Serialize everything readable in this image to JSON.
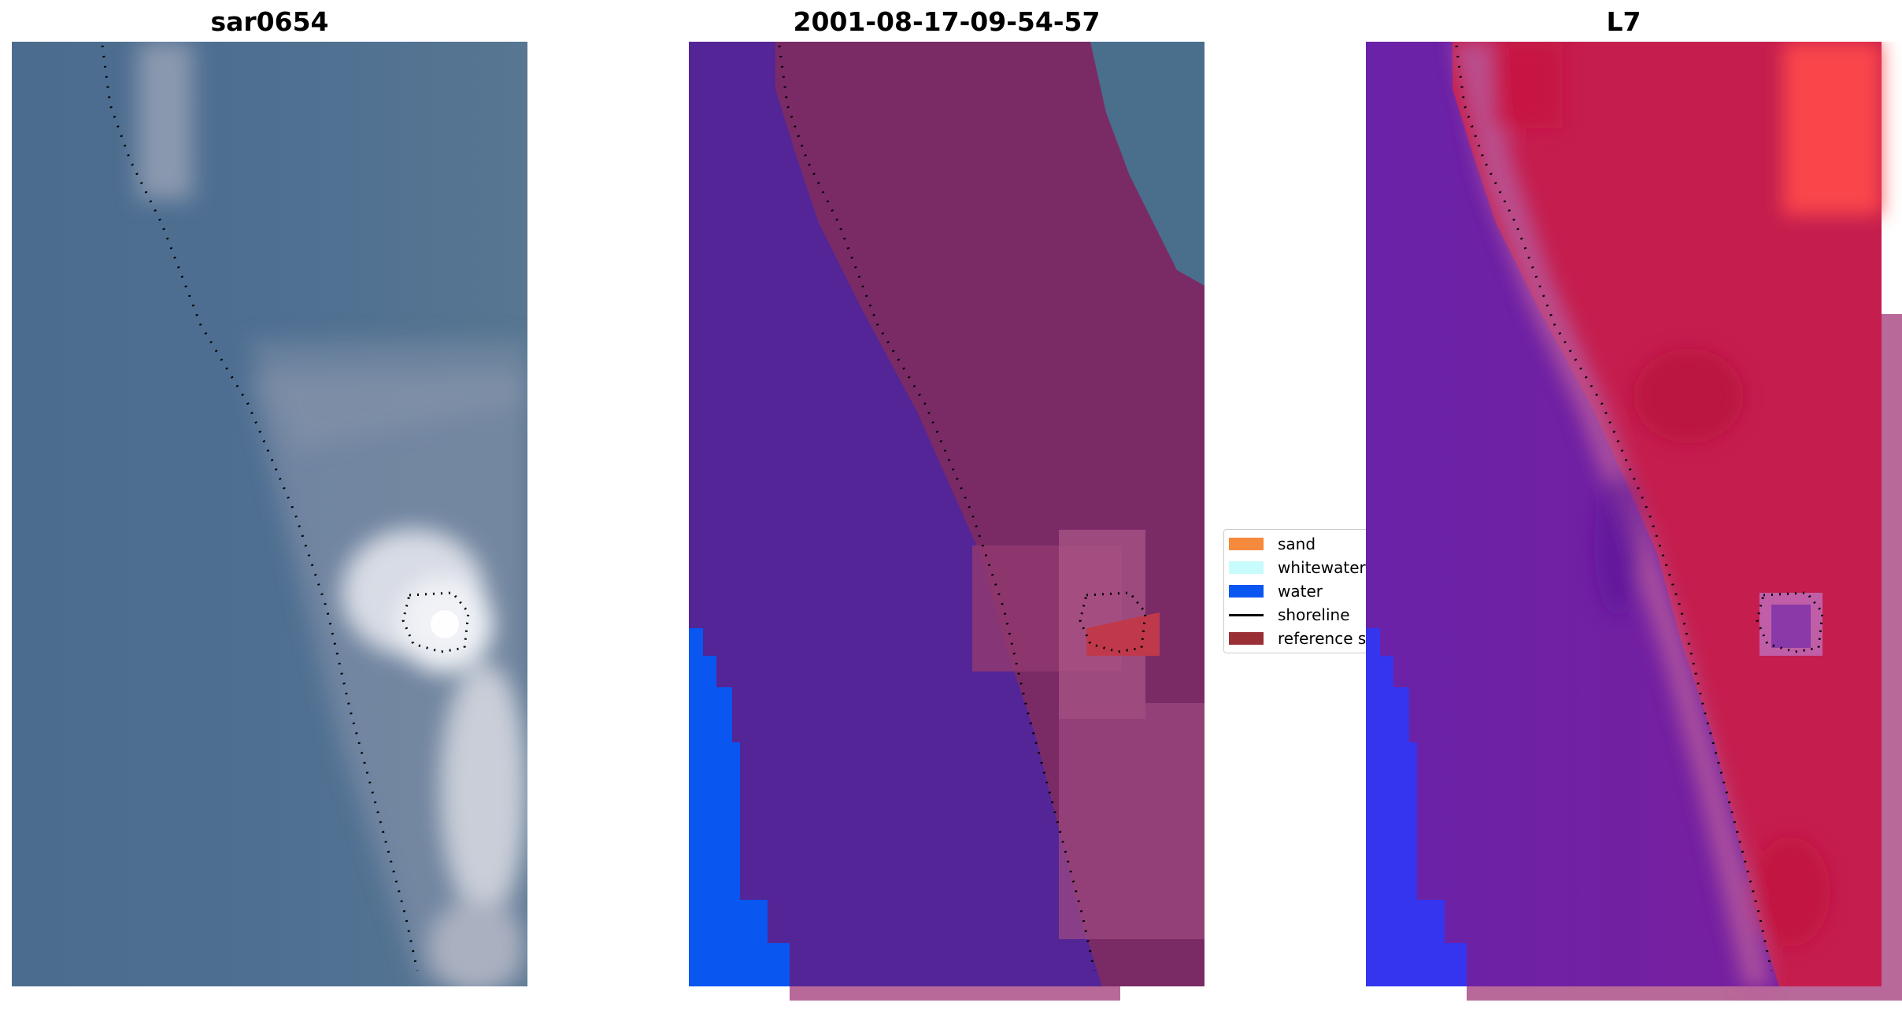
{
  "panels": [
    {
      "title": "sar0654",
      "kind": "rgb-image"
    },
    {
      "title": "2001-08-17-09-54-57",
      "kind": "classified-image"
    },
    {
      "title": "L7",
      "kind": "index-image"
    }
  ],
  "legend": {
    "items": [
      {
        "label": "sand",
        "color": "#f58a3c",
        "type": "patch"
      },
      {
        "label": "whitewater",
        "color": "#c8fbfb",
        "type": "patch"
      },
      {
        "label": "water",
        "color": "#0a56f0",
        "type": "patch"
      },
      {
        "label": "shoreline",
        "color": "#000000",
        "type": "line"
      },
      {
        "label": "reference shoreline",
        "color": "#9a2f35",
        "type": "patch"
      }
    ]
  },
  "colors": {
    "rgb_water": "#4a6a8e",
    "rgb_sand": "#b9bcc8",
    "class_water_land": "#542596",
    "class_land": "#7a2b66",
    "class_water": "#0a56f0",
    "class_sea": "#4a6f8d",
    "mask_overlay": "#b9689a",
    "index_low": "#6a1fa8",
    "index_high": "#c51e4e",
    "index_blue": "#3535f0"
  }
}
